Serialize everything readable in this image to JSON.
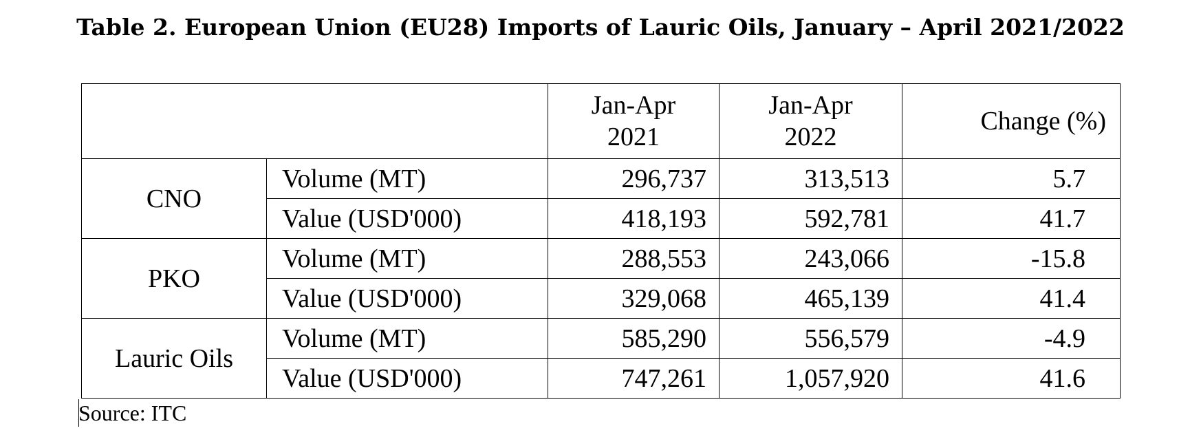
{
  "title": "Table 2. European Union (EU28) Imports of Lauric Oils, January – April 2021/2022",
  "columns": {
    "period_2021_line1": "Jan-Apr",
    "period_2021_line2": "2021",
    "period_2022_line1": "Jan-Apr",
    "period_2022_line2": "2022",
    "change": "Change (%)"
  },
  "groups": [
    {
      "name": "CNO",
      "rows": [
        {
          "metric": "Volume (MT)",
          "y2021": "296,737",
          "y2022": "313,513",
          "change": "5.7"
        },
        {
          "metric": "Value (USD'000)",
          "y2021": "418,193",
          "y2022": "592,781",
          "change": "41.7"
        }
      ]
    },
    {
      "name": "PKO",
      "rows": [
        {
          "metric": "Volume (MT)",
          "y2021": "288,553",
          "y2022": "243,066",
          "change": "-15.8"
        },
        {
          "metric": "Value (USD'000)",
          "y2021": "329,068",
          "y2022": "465,139",
          "change": "41.4"
        }
      ]
    },
    {
      "name": "Lauric Oils",
      "rows": [
        {
          "metric": "Volume (MT)",
          "y2021": "585,290",
          "y2022": "556,579",
          "change": "-4.9"
        },
        {
          "metric": "Value (USD'000)",
          "y2021": "747,261",
          "y2022": "1,057,920",
          "change": "41.6"
        }
      ]
    }
  ],
  "source": "Source: ITC"
}
